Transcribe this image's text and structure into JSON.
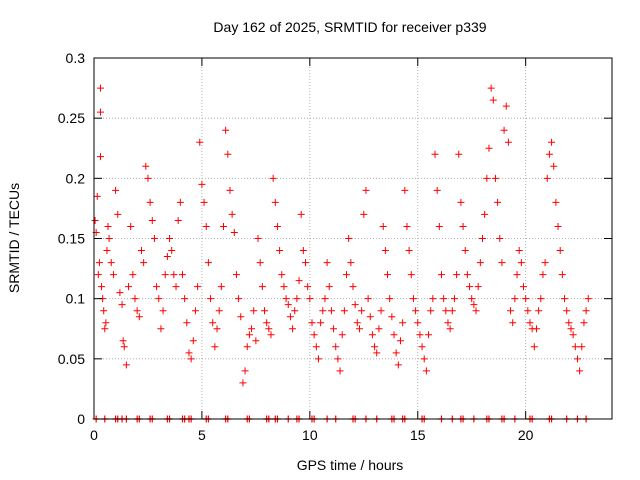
{
  "chart_data": {
    "type": "scatter",
    "title": "Day 162 of 2025, SRMTID for receiver p339",
    "xlabel": "GPS time / hours",
    "ylabel": "SRMTID / TECUs",
    "xlim": [
      0,
      24
    ],
    "ylim": [
      0,
      0.3
    ],
    "grid": true,
    "marker": "+",
    "marker_color": "#ff0000",
    "x_ticks": [
      0,
      5,
      10,
      15,
      20
    ],
    "y_ticks": [
      0,
      0.05,
      0.1,
      0.15,
      0.2,
      0.25,
      0.3
    ],
    "x_tick_labels": [
      "0",
      "5",
      "10",
      "15",
      "20"
    ],
    "y_tick_labels": [
      "0",
      "0.05",
      "0.1",
      "0.15",
      "0.2",
      "0.25",
      "0.3"
    ],
    "series": [
      {
        "name": "SRMTID",
        "points": [
          [
            0.05,
            0.165
          ],
          [
            0.1,
            0.155
          ],
          [
            0.15,
            0.185
          ],
          [
            0.2,
            0.12
          ],
          [
            0.25,
            0.13
          ],
          [
            0.3,
            0.275
          ],
          [
            0.3,
            0.255
          ],
          [
            0.3,
            0.218
          ],
          [
            0.35,
            0.11
          ],
          [
            0.4,
            0.1
          ],
          [
            0.45,
            0.09
          ],
          [
            0.5,
            0.075
          ],
          [
            0.55,
            0.08
          ],
          [
            0.6,
            0.14
          ],
          [
            0.65,
            0.16
          ],
          [
            0.7,
            0.15
          ],
          [
            0.8,
            0.13
          ],
          [
            0.9,
            0.12
          ],
          [
            1.0,
            0.19
          ],
          [
            1.1,
            0.17
          ],
          [
            1.2,
            0.105
          ],
          [
            1.3,
            0.095
          ],
          [
            1.35,
            0.065
          ],
          [
            1.4,
            0.06
          ],
          [
            1.5,
            0.045
          ],
          [
            1.6,
            0.11
          ],
          [
            1.7,
            0.16
          ],
          [
            1.8,
            0.12
          ],
          [
            1.9,
            0.1
          ],
          [
            2.0,
            0.09
          ],
          [
            2.1,
            0.085
          ],
          [
            2.2,
            0.14
          ],
          [
            2.3,
            0.13
          ],
          [
            2.4,
            0.21
          ],
          [
            2.5,
            0.2
          ],
          [
            2.6,
            0.18
          ],
          [
            2.7,
            0.165
          ],
          [
            2.8,
            0.15
          ],
          [
            2.9,
            0.11
          ],
          [
            3.0,
            0.1
          ],
          [
            3.1,
            0.075
          ],
          [
            3.2,
            0.09
          ],
          [
            3.3,
            0.12
          ],
          [
            3.4,
            0.135
          ],
          [
            3.5,
            0.15
          ],
          [
            3.6,
            0.14
          ],
          [
            3.7,
            0.12
          ],
          [
            3.8,
            0.11
          ],
          [
            3.9,
            0.165
          ],
          [
            4.0,
            0.18
          ],
          [
            4.1,
            0.12
          ],
          [
            4.2,
            0.1
          ],
          [
            4.3,
            0.08
          ],
          [
            4.4,
            0.055
          ],
          [
            4.5,
            0.05
          ],
          [
            4.6,
            0.065
          ],
          [
            4.7,
            0.09
          ],
          [
            4.8,
            0.11
          ],
          [
            4.9,
            0.23
          ],
          [
            5.0,
            0.195
          ],
          [
            5.1,
            0.18
          ],
          [
            5.2,
            0.16
          ],
          [
            5.3,
            0.13
          ],
          [
            5.4,
            0.1
          ],
          [
            5.5,
            0.08
          ],
          [
            5.6,
            0.06
          ],
          [
            5.7,
            0.075
          ],
          [
            5.8,
            0.09
          ],
          [
            5.9,
            0.11
          ],
          [
            6.0,
            0.16
          ],
          [
            6.1,
            0.24
          ],
          [
            6.2,
            0.22
          ],
          [
            6.3,
            0.19
          ],
          [
            6.4,
            0.17
          ],
          [
            6.5,
            0.155
          ],
          [
            6.6,
            0.12
          ],
          [
            6.7,
            0.1
          ],
          [
            6.8,
            0.085
          ],
          [
            6.9,
            0.03
          ],
          [
            7.0,
            0.04
          ],
          [
            7.1,
            0.06
          ],
          [
            7.2,
            0.07
          ],
          [
            7.3,
            0.075
          ],
          [
            7.4,
            0.09
          ],
          [
            7.5,
            0.065
          ],
          [
            7.6,
            0.15
          ],
          [
            7.7,
            0.13
          ],
          [
            7.8,
            0.11
          ],
          [
            7.9,
            0.09
          ],
          [
            8.0,
            0.08
          ],
          [
            8.1,
            0.075
          ],
          [
            8.2,
            0.07
          ],
          [
            8.3,
            0.2
          ],
          [
            8.4,
            0.18
          ],
          [
            8.5,
            0.16
          ],
          [
            8.6,
            0.14
          ],
          [
            8.7,
            0.12
          ],
          [
            8.8,
            0.11
          ],
          [
            8.9,
            0.1
          ],
          [
            9.0,
            0.095
          ],
          [
            9.1,
            0.085
          ],
          [
            9.2,
            0.075
          ],
          [
            9.3,
            0.09
          ],
          [
            9.4,
            0.1
          ],
          [
            9.5,
            0.115
          ],
          [
            9.6,
            0.17
          ],
          [
            9.7,
            0.14
          ],
          [
            9.8,
            0.13
          ],
          [
            9.9,
            0.11
          ],
          [
            10.0,
            0.1
          ],
          [
            10.1,
            0.08
          ],
          [
            10.2,
            0.07
          ],
          [
            10.3,
            0.06
          ],
          [
            10.4,
            0.05
          ],
          [
            10.5,
            0.08
          ],
          [
            10.6,
            0.09
          ],
          [
            10.7,
            0.1
          ],
          [
            10.8,
            0.13
          ],
          [
            10.9,
            0.11
          ],
          [
            11.0,
            0.09
          ],
          [
            11.1,
            0.075
          ],
          [
            11.2,
            0.06
          ],
          [
            11.3,
            0.05
          ],
          [
            11.4,
            0.04
          ],
          [
            11.5,
            0.07
          ],
          [
            11.6,
            0.09
          ],
          [
            11.7,
            0.12
          ],
          [
            11.8,
            0.15
          ],
          [
            11.9,
            0.13
          ],
          [
            12.0,
            0.11
          ],
          [
            12.1,
            0.095
          ],
          [
            12.2,
            0.08
          ],
          [
            12.3,
            0.075
          ],
          [
            12.4,
            0.09
          ],
          [
            12.5,
            0.17
          ],
          [
            12.6,
            0.19
          ],
          [
            12.7,
            0.1
          ],
          [
            12.8,
            0.085
          ],
          [
            12.9,
            0.07
          ],
          [
            13.0,
            0.06
          ],
          [
            13.1,
            0.055
          ],
          [
            13.2,
            0.075
          ],
          [
            13.3,
            0.09
          ],
          [
            13.4,
            0.16
          ],
          [
            13.5,
            0.14
          ],
          [
            13.6,
            0.12
          ],
          [
            13.7,
            0.1
          ],
          [
            13.8,
            0.085
          ],
          [
            13.9,
            0.07
          ],
          [
            14.0,
            0.055
          ],
          [
            14.1,
            0.045
          ],
          [
            14.2,
            0.065
          ],
          [
            14.3,
            0.08
          ],
          [
            14.4,
            0.19
          ],
          [
            14.5,
            0.16
          ],
          [
            14.6,
            0.14
          ],
          [
            14.7,
            0.12
          ],
          [
            14.8,
            0.1
          ],
          [
            14.9,
            0.09
          ],
          [
            15.0,
            0.08
          ],
          [
            15.1,
            0.07
          ],
          [
            15.2,
            0.06
          ],
          [
            15.3,
            0.05
          ],
          [
            15.4,
            0.04
          ],
          [
            15.5,
            0.07
          ],
          [
            15.6,
            0.09
          ],
          [
            15.7,
            0.1
          ],
          [
            15.8,
            0.22
          ],
          [
            15.9,
            0.19
          ],
          [
            16.0,
            0.16
          ],
          [
            16.1,
            0.12
          ],
          [
            16.2,
            0.1
          ],
          [
            16.3,
            0.09
          ],
          [
            16.4,
            0.08
          ],
          [
            16.5,
            0.075
          ],
          [
            16.6,
            0.09
          ],
          [
            16.7,
            0.1
          ],
          [
            16.8,
            0.12
          ],
          [
            16.9,
            0.22
          ],
          [
            17.0,
            0.18
          ],
          [
            17.1,
            0.16
          ],
          [
            17.2,
            0.14
          ],
          [
            17.3,
            0.12
          ],
          [
            17.4,
            0.11
          ],
          [
            17.5,
            0.1
          ],
          [
            17.6,
            0.095
          ],
          [
            17.7,
            0.09
          ],
          [
            17.8,
            0.11
          ],
          [
            17.9,
            0.13
          ],
          [
            18.0,
            0.15
          ],
          [
            18.1,
            0.17
          ],
          [
            18.2,
            0.2
          ],
          [
            18.3,
            0.225
          ],
          [
            18.4,
            0.275
          ],
          [
            18.5,
            0.265
          ],
          [
            18.6,
            0.2
          ],
          [
            18.7,
            0.18
          ],
          [
            18.8,
            0.15
          ],
          [
            18.9,
            0.13
          ],
          [
            19.0,
            0.24
          ],
          [
            19.1,
            0.26
          ],
          [
            19.2,
            0.23
          ],
          [
            19.3,
            0.09
          ],
          [
            19.4,
            0.08
          ],
          [
            19.5,
            0.1
          ],
          [
            19.6,
            0.12
          ],
          [
            19.7,
            0.14
          ],
          [
            19.8,
            0.13
          ],
          [
            19.9,
            0.11
          ],
          [
            20.0,
            0.1
          ],
          [
            20.1,
            0.09
          ],
          [
            20.2,
            0.08
          ],
          [
            20.3,
            0.075
          ],
          [
            20.4,
            0.06
          ],
          [
            20.5,
            0.075
          ],
          [
            20.6,
            0.09
          ],
          [
            20.7,
            0.1
          ],
          [
            20.8,
            0.12
          ],
          [
            20.9,
            0.13
          ],
          [
            21.0,
            0.2
          ],
          [
            21.1,
            0.22
          ],
          [
            21.2,
            0.23
          ],
          [
            21.3,
            0.21
          ],
          [
            21.4,
            0.18
          ],
          [
            21.5,
            0.16
          ],
          [
            21.6,
            0.14
          ],
          [
            21.7,
            0.12
          ],
          [
            21.8,
            0.1
          ],
          [
            21.9,
            0.09
          ],
          [
            22.0,
            0.08
          ],
          [
            22.1,
            0.075
          ],
          [
            22.2,
            0.07
          ],
          [
            22.3,
            0.06
          ],
          [
            22.4,
            0.05
          ],
          [
            22.5,
            0.04
          ],
          [
            22.6,
            0.06
          ],
          [
            22.7,
            0.08
          ],
          [
            22.8,
            0.09
          ],
          [
            22.9,
            0.1
          ]
        ]
      }
    ],
    "zero_marks_x": [
      0.1,
      0.5,
      1.0,
      1.1,
      1.3,
      1.5,
      2.0,
      2.1,
      2.6,
      2.7,
      3.4,
      3.5,
      4.1,
      4.2,
      4.4,
      4.5,
      5.2,
      5.3,
      6.1,
      6.2,
      7.1,
      7.2,
      8.0,
      8.1,
      8.4,
      8.5,
      9.0,
      9.4,
      9.5,
      10.1,
      10.2,
      10.8,
      11.2,
      12.0,
      12.1,
      12.6,
      13.1,
      13.8,
      13.9,
      14.3,
      14.4,
      15.2,
      15.3,
      16.1,
      16.6,
      17.0,
      17.1,
      17.6,
      18.2,
      18.3,
      18.9,
      19.0,
      19.5,
      20.2,
      20.3,
      21.1,
      21.2,
      21.9,
      22.4,
      22.8
    ]
  }
}
